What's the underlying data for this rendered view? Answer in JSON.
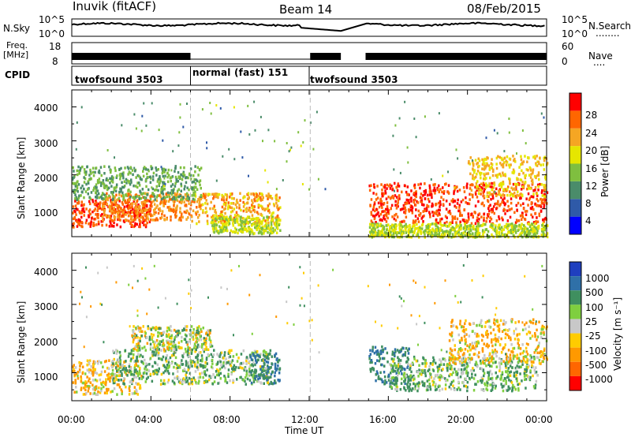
{
  "header": {
    "station": "Inuvik (fitACF)",
    "beam": "Beam 14",
    "date": "08/Feb/2015"
  },
  "panels": {
    "sky": {
      "left_label": "N.Sky",
      "right_label": "N.Search",
      "left_ticks": [
        "10^5",
        "10^0"
      ],
      "right_ticks": [
        "10^5",
        "10^0"
      ],
      "right_dots": "........"
    },
    "freq": {
      "left_label_1": "Freq.",
      "left_label_2": "[MHz]",
      "right_label": "Nave",
      "left_ticks": [
        "18",
        "8"
      ],
      "right_ticks": [
        "60",
        "0"
      ],
      "right_dots": "...."
    },
    "cpid": {
      "label": "CPID",
      "segments": [
        {
          "name": "twofsound 3503",
          "start_hour": 0,
          "end_hour": 6
        },
        {
          "name": "normal (fast) 151",
          "start_hour": 6,
          "end_hour": 12
        },
        {
          "name": "twofsound 3503",
          "start_hour": 12,
          "end_hour": 24
        }
      ]
    }
  },
  "power_panel": {
    "ylabel": "Slant Range [km]",
    "yticks": [
      "1000",
      "2000",
      "3000",
      "4000"
    ],
    "cbar_label": "Power [dB]",
    "cbar_ticks": [
      "4",
      "8",
      "12",
      "16",
      "20",
      "24",
      "28"
    ],
    "cbar_colors": [
      "#0000ff",
      "#2f5aa8",
      "#4a8c6a",
      "#7fbf3f",
      "#e6e600",
      "#f5a623",
      "#ff6600",
      "#ff0000"
    ]
  },
  "velocity_panel": {
    "ylabel": "Slant Range [km]",
    "yticks": [
      "1000",
      "2000",
      "3000",
      "4000"
    ],
    "cbar_label": "Velocity [m s⁻¹]",
    "cbar_ticks": [
      "1000",
      "500",
      "100",
      "25",
      "-25",
      "-100",
      "-500",
      "-1000"
    ],
    "cbar_colors": [
      "#1f3fbf",
      "#2f70a8",
      "#3f8f5f",
      "#7fcf3f",
      "#c8c8c8",
      "#ffcc00",
      "#ff9900",
      "#ff6600",
      "#ff0000"
    ]
  },
  "x_axis": {
    "label": "Time UT",
    "ticks": [
      "00:00",
      "04:00",
      "08:00",
      "12:00",
      "16:00",
      "20:00",
      "00:00"
    ]
  },
  "chart_data": {
    "type": "heatmap",
    "x_unit": "hours UT",
    "xlim": [
      0,
      24
    ],
    "ylim_km": [
      180,
      4500
    ],
    "data_gap_hours": [
      13.2,
      14.8
    ],
    "blobs_power": [
      {
        "t0": 0.0,
        "t1": 4.0,
        "r0": 500,
        "r1": 1300,
        "db": 28
      },
      {
        "t0": 1.5,
        "t1": 6.0,
        "r0": 700,
        "r1": 1500,
        "db": 24
      },
      {
        "t0": 6.0,
        "t1": 10.5,
        "r0": 600,
        "r1": 1500,
        "db": 22
      },
      {
        "t0": 7.0,
        "t1": 10.5,
        "r0": 300,
        "r1": 800,
        "db": 16
      },
      {
        "t0": 0.0,
        "t1": 6.5,
        "r0": 1300,
        "r1": 2300,
        "db": 12
      },
      {
        "t0": 15.0,
        "t1": 24.0,
        "r0": 600,
        "r1": 1800,
        "db": 28
      },
      {
        "t0": 20.0,
        "t1": 24.0,
        "r0": 1400,
        "r1": 2600,
        "db": 20
      },
      {
        "t0": 15.0,
        "t1": 24.0,
        "r0": 200,
        "r1": 600,
        "db": 16
      }
    ],
    "blobs_velocity": [
      {
        "t0": 0.0,
        "t1": 3.5,
        "r0": 400,
        "r1": 1400,
        "vel": -100
      },
      {
        "t0": 2.0,
        "t1": 10.0,
        "r0": 700,
        "r1": 1700,
        "vel": 100
      },
      {
        "t0": 9.0,
        "t1": 10.5,
        "r0": 700,
        "r1": 1600,
        "vel": 500
      },
      {
        "t0": 3.0,
        "t1": 7.0,
        "r0": 1700,
        "r1": 2400,
        "vel": 0
      },
      {
        "t0": 15.0,
        "t1": 17.0,
        "r0": 700,
        "r1": 1800,
        "vel": 500
      },
      {
        "t0": 16.0,
        "t1": 23.5,
        "r0": 500,
        "r1": 1500,
        "vel": 100
      },
      {
        "t0": 19.0,
        "t1": 24.0,
        "r0": 1300,
        "r1": 2600,
        "vel": -100
      }
    ]
  }
}
